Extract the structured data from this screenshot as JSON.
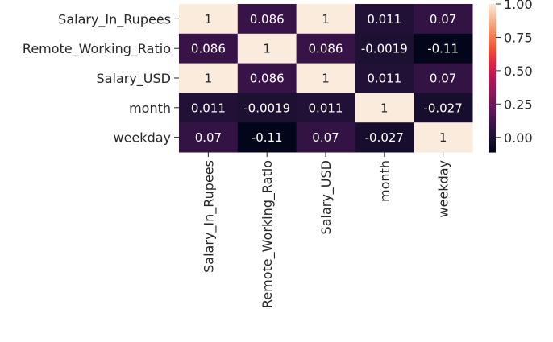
{
  "chart_data": {
    "type": "heatmap",
    "title": "",
    "rows": [
      "Salary_In_Rupees",
      "Remote_Working_Ratio",
      "Salary_USD",
      "month",
      "weekday"
    ],
    "columns": [
      "Salary_In_Rupees",
      "Remote_Working_Ratio",
      "Salary_USD",
      "month",
      "weekday"
    ],
    "values": [
      [
        1,
        0.086,
        1,
        0.011,
        0.07
      ],
      [
        0.086,
        1,
        0.086,
        -0.0019,
        -0.11
      ],
      [
        1,
        0.086,
        1,
        0.011,
        0.07
      ],
      [
        0.011,
        -0.0019,
        0.011,
        1,
        -0.027
      ],
      [
        0.07,
        -0.11,
        0.07,
        -0.027,
        1
      ]
    ],
    "labels": [
      [
        "1",
        "0.086",
        "1",
        "0.011",
        "0.07"
      ],
      [
        "0.086",
        "1",
        "0.086",
        "-0.0019",
        "-0.11"
      ],
      [
        "1",
        "0.086",
        "1",
        "0.011",
        "0.07"
      ],
      [
        "0.011",
        "-0.0019",
        "0.011",
        "1",
        "-0.027"
      ],
      [
        "0.07",
        "-0.11",
        "0.07",
        "-0.027",
        "1"
      ]
    ],
    "vmin": -0.11,
    "vmax": 1,
    "colorbar_ticks": [
      1.0,
      0.75,
      0.5,
      0.25,
      0.0
    ],
    "colorbar_tick_labels": [
      "1.00",
      "0.75",
      "0.50",
      "0.25",
      "0.00"
    ],
    "colormap": "rocket"
  }
}
